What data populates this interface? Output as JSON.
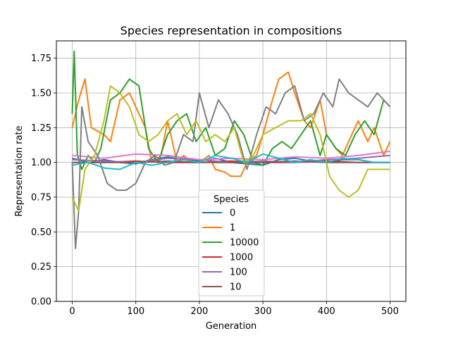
{
  "chart_data": {
    "type": "line",
    "title": "Species representation in compositions",
    "xlabel": "Generation",
    "ylabel": "Representation rate",
    "xlim": [
      -25,
      525
    ],
    "ylim": [
      0.0,
      1.875
    ],
    "xticks": [
      0,
      100,
      200,
      300,
      400,
      500
    ],
    "yticks": [
      0.0,
      0.25,
      0.5,
      0.75,
      1.0,
      1.25,
      1.5,
      1.75
    ],
    "ytick_labels": [
      "0.00",
      "0.25",
      "0.50",
      "0.75",
      "1.00",
      "1.25",
      "1.50",
      "1.75"
    ],
    "grid": true,
    "legend": {
      "title": "Species",
      "placement": "lower center",
      "entries": [
        "0",
        "1",
        "10000",
        "1000",
        "100",
        "10"
      ]
    },
    "series": [
      {
        "name": "0",
        "color": "#1f77b4",
        "x": [
          0,
          25,
          50,
          75,
          100,
          125,
          150,
          175,
          200,
          225,
          250,
          275,
          300,
          325,
          350,
          375,
          400,
          425,
          450,
          475,
          500
        ],
        "y": [
          1.03,
          1.0,
          1.02,
          1.0,
          0.99,
          1.02,
          1.04,
          1.02,
          1.01,
          1.03,
          1.0,
          0.99,
          0.98,
          1.02,
          1.03,
          1.01,
          1.0,
          1.02,
          1.02,
          1.0,
          1.0
        ]
      },
      {
        "name": "1",
        "color": "#ff7f0e",
        "x": [
          0,
          10,
          20,
          30,
          50,
          60,
          75,
          90,
          100,
          115,
          125,
          140,
          150,
          165,
          175,
          190,
          200,
          215,
          225,
          240,
          250,
          265,
          275,
          290,
          300,
          315,
          325,
          340,
          350,
          365,
          375,
          390,
          400,
          415,
          425,
          440,
          450,
          465,
          475,
          490,
          500
        ],
        "y": [
          1.25,
          1.45,
          1.6,
          1.25,
          1.2,
          1.15,
          1.45,
          1.5,
          1.4,
          1.25,
          1.0,
          1.05,
          1.3,
          1.0,
          1.05,
          1.0,
          1.0,
          1.05,
          0.95,
          0.93,
          0.9,
          0.9,
          1.0,
          1.05,
          1.2,
          1.45,
          1.6,
          1.65,
          1.5,
          1.3,
          1.25,
          1.45,
          1.2,
          1.1,
          1.05,
          1.2,
          1.3,
          1.15,
          1.25,
          1.05,
          1.15
        ]
      },
      {
        "name": "10000",
        "color": "#2ca02c",
        "x": [
          0,
          3,
          8,
          15,
          25,
          35,
          45,
          60,
          75,
          90,
          105,
          120,
          135,
          150,
          165,
          180,
          195,
          210,
          225,
          240,
          255,
          270,
          285,
          300,
          315,
          330,
          345,
          360,
          375,
          390,
          400,
          415,
          430,
          445,
          460,
          475,
          490,
          500
        ],
        "y": [
          1.35,
          1.8,
          1.05,
          0.95,
          1.05,
          1.0,
          1.1,
          1.45,
          1.5,
          1.6,
          1.55,
          1.1,
          1.0,
          1.2,
          1.3,
          1.35,
          1.15,
          1.25,
          1.05,
          1.1,
          1.3,
          1.2,
          1.0,
          0.98,
          1.1,
          1.15,
          1.1,
          1.2,
          1.3,
          1.05,
          1.2,
          1.1,
          1.05,
          1.2,
          1.3,
          1.2,
          1.45,
          1.4
        ]
      },
      {
        "name": "1000",
        "color": "#d62728",
        "x": [
          0,
          50,
          100,
          150,
          200,
          250,
          300,
          350,
          400,
          450,
          500
        ],
        "y": [
          1.0,
          1.0,
          1.01,
          1.0,
          1.0,
          1.01,
          1.0,
          1.0,
          1.01,
          1.0,
          1.0
        ]
      },
      {
        "name": "100",
        "color": "#9467bd",
        "x": [
          0,
          50,
          100,
          150,
          200,
          250,
          300,
          350,
          400,
          450,
          500
        ],
        "y": [
          1.02,
          1.01,
          1.0,
          1.03,
          1.02,
          1.0,
          1.01,
          1.0,
          1.02,
          1.03,
          1.05
        ]
      },
      {
        "name": "10",
        "color": "#8c564b",
        "x": [
          0,
          50,
          100,
          150,
          200,
          250,
          300,
          350,
          400,
          450,
          500
        ],
        "y": [
          1.0,
          1.0,
          1.0,
          1.01,
          1.0,
          1.0,
          1.0,
          1.01,
          1.0,
          1.0,
          1.0
        ]
      },
      {
        "color": "#e377c2",
        "x": [
          0,
          50,
          100,
          150,
          200,
          250,
          300,
          350,
          400,
          450,
          500
        ],
        "y": [
          1.05,
          1.03,
          1.06,
          1.05,
          1.02,
          1.03,
          1.02,
          1.04,
          1.03,
          1.05,
          1.08
        ]
      },
      {
        "color": "#7f7f7f",
        "x": [
          0,
          5,
          10,
          15,
          25,
          40,
          55,
          70,
          85,
          100,
          115,
          130,
          145,
          160,
          175,
          190,
          200,
          215,
          230,
          245,
          260,
          275,
          290,
          305,
          320,
          335,
          350,
          365,
          380,
          395,
          410,
          420,
          435,
          450,
          465,
          480,
          500
        ],
        "y": [
          1.0,
          0.38,
          0.65,
          1.4,
          1.15,
          1.05,
          0.85,
          0.8,
          0.8,
          0.85,
          1.0,
          1.05,
          0.98,
          1.0,
          1.2,
          1.15,
          1.5,
          1.25,
          1.45,
          1.35,
          1.2,
          0.95,
          1.2,
          1.4,
          1.35,
          1.5,
          1.55,
          1.3,
          1.35,
          1.5,
          1.4,
          1.6,
          1.5,
          1.45,
          1.4,
          1.5,
          1.4
        ]
      },
      {
        "color": "#bcbd22",
        "x": [
          0,
          10,
          20,
          35,
          50,
          60,
          75,
          90,
          105,
          120,
          135,
          150,
          165,
          180,
          195,
          210,
          225,
          240,
          255,
          270,
          285,
          300,
          320,
          340,
          360,
          375,
          390,
          405,
          420,
          435,
          450,
          465,
          480,
          500
        ],
        "y": [
          0.75,
          0.65,
          0.95,
          1.05,
          1.3,
          1.55,
          1.5,
          1.4,
          1.2,
          1.15,
          1.2,
          1.3,
          1.35,
          1.2,
          1.3,
          1.15,
          1.2,
          1.15,
          1.25,
          1.0,
          1.05,
          1.2,
          1.25,
          1.3,
          1.3,
          1.35,
          1.2,
          0.9,
          0.8,
          0.75,
          0.8,
          0.95,
          0.95,
          0.95
        ]
      },
      {
        "color": "#17becf",
        "x": [
          0,
          25,
          50,
          75,
          100,
          125,
          150,
          175,
          200,
          225,
          250,
          275,
          300,
          325,
          350,
          375,
          400,
          425,
          450,
          475,
          500
        ],
        "y": [
          0.98,
          1.0,
          0.96,
          0.95,
          1.0,
          0.98,
          1.0,
          1.02,
          1.0,
          1.05,
          1.03,
          1.0,
          1.06,
          1.03,
          1.0,
          1.02,
          1.0,
          1.03,
          1.02,
          1.0,
          1.0
        ]
      }
    ]
  }
}
